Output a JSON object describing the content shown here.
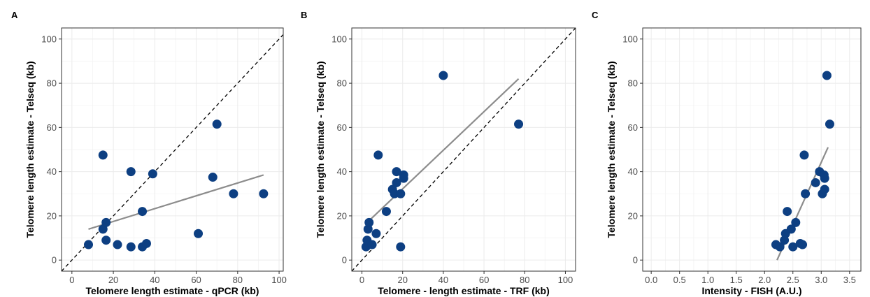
{
  "colors": {
    "point": "#0d3f82",
    "fit": "#8c8c8c",
    "identity": "#000000",
    "grid": "#ebebeb",
    "border": "#333333"
  },
  "chart_data": [
    {
      "type": "scatter",
      "panel": "A",
      "xlabel": "Telomere length estimate - qPCR (kb)",
      "ylabel": "Telomere length estimate - Telseq (kb)",
      "xlim": [
        -5,
        102
      ],
      "ylim": [
        -5,
        105
      ],
      "xticks": [
        0,
        20,
        40,
        60,
        80,
        100
      ],
      "xtick_labels": [
        "0",
        "20",
        "40",
        "60",
        "80",
        "100"
      ],
      "yticks": [
        0,
        20,
        40,
        60,
        80,
        100
      ],
      "ytick_labels": [
        "0",
        "20",
        "40",
        "60",
        "80",
        "100"
      ],
      "grid": true,
      "identity_line": true,
      "points": [
        {
          "x": 8,
          "y": 7
        },
        {
          "x": 15,
          "y": 47.5
        },
        {
          "x": 15,
          "y": 14
        },
        {
          "x": 16.5,
          "y": 17
        },
        {
          "x": 16.5,
          "y": 9
        },
        {
          "x": 22,
          "y": 7
        },
        {
          "x": 28.5,
          "y": 40
        },
        {
          "x": 28.5,
          "y": 6
        },
        {
          "x": 34,
          "y": 22
        },
        {
          "x": 34,
          "y": 6
        },
        {
          "x": 36,
          "y": 7.5
        },
        {
          "x": 39,
          "y": 39
        },
        {
          "x": 61,
          "y": 12
        },
        {
          "x": 68,
          "y": 37.5
        },
        {
          "x": 70,
          "y": 61.5
        },
        {
          "x": 78,
          "y": 30
        },
        {
          "x": 92.5,
          "y": 30
        }
      ],
      "fit_line": {
        "x": [
          8,
          92.5
        ],
        "y": [
          14,
          38.5
        ]
      }
    },
    {
      "type": "scatter",
      "panel": "B",
      "xlabel": "Telomere - length estimate - TRF (kb)",
      "ylabel": "Telomere length estimate - Telseq (kb)",
      "xlim": [
        -5,
        105
      ],
      "ylim": [
        -5,
        105
      ],
      "xticks": [
        0,
        20,
        40,
        60,
        80,
        100
      ],
      "xtick_labels": [
        "0",
        "20",
        "40",
        "60",
        "80",
        "100"
      ],
      "yticks": [
        0,
        20,
        40,
        60,
        80,
        100
      ],
      "ytick_labels": [
        "0",
        "20",
        "40",
        "60",
        "80",
        "100"
      ],
      "grid": true,
      "identity_line": true,
      "points": [
        {
          "x": 2,
          "y": 6
        },
        {
          "x": 2.5,
          "y": 9
        },
        {
          "x": 3,
          "y": 14
        },
        {
          "x": 3.5,
          "y": 17
        },
        {
          "x": 5,
          "y": 7
        },
        {
          "x": 7,
          "y": 12
        },
        {
          "x": 8,
          "y": 47.5
        },
        {
          "x": 12,
          "y": 22
        },
        {
          "x": 15,
          "y": 32
        },
        {
          "x": 16,
          "y": 30
        },
        {
          "x": 17,
          "y": 35
        },
        {
          "x": 17,
          "y": 40
        },
        {
          "x": 19,
          "y": 30
        },
        {
          "x": 19,
          "y": 6
        },
        {
          "x": 20.5,
          "y": 38.5
        },
        {
          "x": 20.5,
          "y": 37
        },
        {
          "x": 40,
          "y": 83.5
        },
        {
          "x": 77,
          "y": 61.5
        }
      ],
      "fit_line": {
        "x": [
          2,
          77
        ],
        "y": [
          16.5,
          82
        ]
      }
    },
    {
      "type": "scatter",
      "panel": "C",
      "xlabel": "Intensity - FISH (A.U.)",
      "ylabel": "Telomere length estimate - Telseq (kb)",
      "xlim": [
        -0.15,
        3.7
      ],
      "ylim": [
        -5,
        105
      ],
      "xticks": [
        0.0,
        0.5,
        1.0,
        1.5,
        2.0,
        2.5,
        3.0,
        3.5
      ],
      "xtick_labels": [
        "0.0",
        "0.5",
        "1.0",
        "1.5",
        "2.0",
        "2.5",
        "3.0",
        "3.5"
      ],
      "yticks": [
        0,
        20,
        40,
        60,
        80,
        100
      ],
      "ytick_labels": [
        "0",
        "20",
        "40",
        "60",
        "80",
        "100"
      ],
      "grid": true,
      "identity_line": false,
      "points": [
        {
          "x": 2.2,
          "y": 7
        },
        {
          "x": 2.27,
          "y": 6
        },
        {
          "x": 2.35,
          "y": 9
        },
        {
          "x": 2.37,
          "y": 12
        },
        {
          "x": 2.4,
          "y": 22
        },
        {
          "x": 2.47,
          "y": 14
        },
        {
          "x": 2.5,
          "y": 6
        },
        {
          "x": 2.55,
          "y": 17
        },
        {
          "x": 2.63,
          "y": 7.5
        },
        {
          "x": 2.67,
          "y": 7
        },
        {
          "x": 2.7,
          "y": 47.5
        },
        {
          "x": 2.72,
          "y": 30
        },
        {
          "x": 2.9,
          "y": 35
        },
        {
          "x": 2.97,
          "y": 40
        },
        {
          "x": 3.02,
          "y": 30
        },
        {
          "x": 3.05,
          "y": 38.5
        },
        {
          "x": 3.06,
          "y": 37
        },
        {
          "x": 3.06,
          "y": 32
        },
        {
          "x": 3.1,
          "y": 83.5
        },
        {
          "x": 3.15,
          "y": 61.5
        }
      ],
      "fit_line": {
        "x": [
          2.22,
          3.12
        ],
        "y": [
          0,
          51
        ]
      }
    }
  ]
}
